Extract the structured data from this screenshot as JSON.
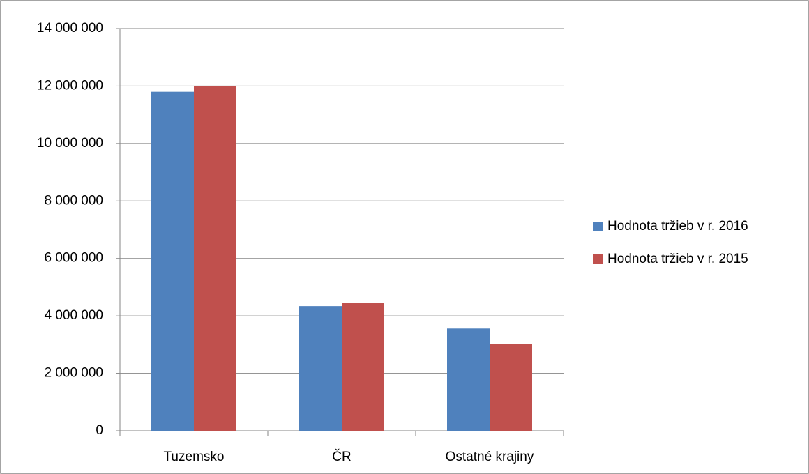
{
  "chart_data": {
    "type": "bar",
    "categories": [
      "Tuzemsko",
      "ČR",
      "Ostatné krajiny"
    ],
    "series": [
      {
        "name": "Hodnota tržieb v r. 2016",
        "color": "#4f81bd",
        "values": [
          11800000,
          4340000,
          3560000
        ]
      },
      {
        "name": "Hodnota tržieb v r. 2015",
        "color": "#c0504d",
        "values": [
          12000000,
          4440000,
          3030000
        ]
      }
    ],
    "ylim": [
      0,
      14000000
    ],
    "yticks": [
      {
        "value": 0,
        "label": "0"
      },
      {
        "value": 2000000,
        "label": "2 000 000"
      },
      {
        "value": 4000000,
        "label": "4 000 000"
      },
      {
        "value": 6000000,
        "label": "6 000 000"
      },
      {
        "value": 8000000,
        "label": "8 000 000"
      },
      {
        "value": 10000000,
        "label": "10 000 000"
      },
      {
        "value": 12000000,
        "label": "12 000 000"
      },
      {
        "value": 14000000,
        "label": "14 000 000"
      }
    ],
    "grid": true,
    "legend": "right"
  }
}
